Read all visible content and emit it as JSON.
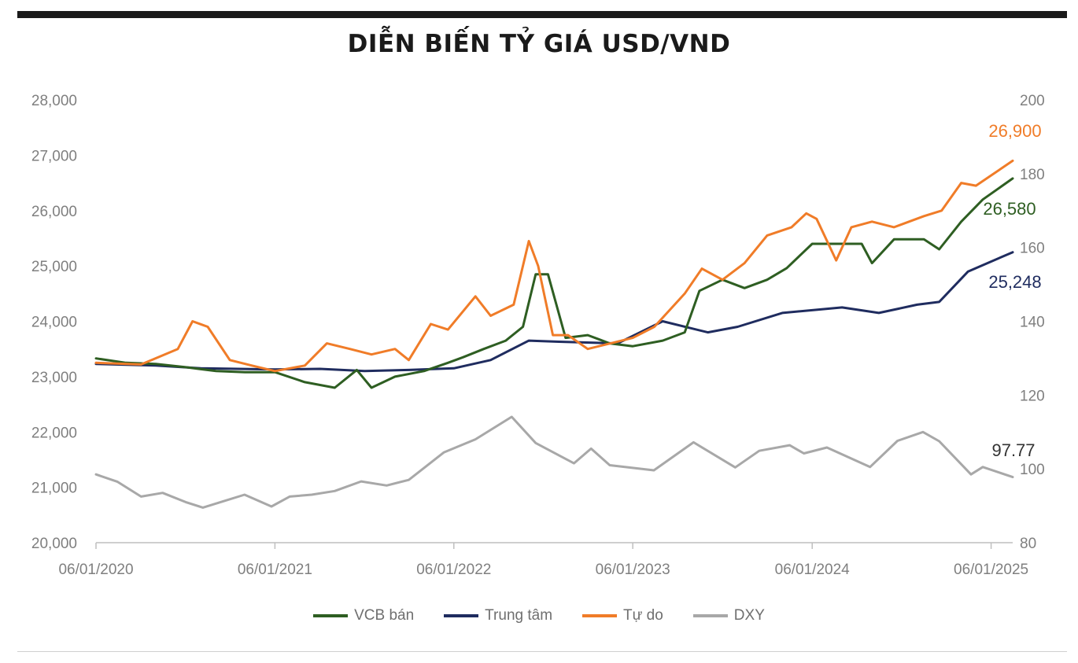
{
  "chart_data": {
    "type": "line",
    "title": "DIỄN BIẾN TỶ GIÁ USD/VND",
    "x_ticks": [
      "06/01/2020",
      "06/01/2021",
      "06/01/2022",
      "06/01/2023",
      "06/01/2024",
      "06/01/2025"
    ],
    "x_range": [
      "2020-06-01",
      "2025-07-15"
    ],
    "y_left": {
      "range": [
        20000,
        28000
      ],
      "ticks": [
        "20,000",
        "21,000",
        "22,000",
        "23,000",
        "24,000",
        "25,000",
        "26,000",
        "27,000",
        "28,000"
      ]
    },
    "y_right": {
      "range": [
        80,
        200
      ],
      "ticks": [
        "80",
        "100",
        "120",
        "140",
        "160",
        "180",
        "200"
      ]
    },
    "legend_position": "bottom",
    "grid": false,
    "series": [
      {
        "name": "VCB bán",
        "color": "#2e5e22",
        "axis": "left",
        "end_label": "26,580",
        "x": [
          "2020-06-01",
          "2020-08-01",
          "2020-10-01",
          "2020-12-01",
          "2021-02-01",
          "2021-04-01",
          "2021-06-01",
          "2021-08-01",
          "2021-10-01",
          "2021-11-15",
          "2021-12-15",
          "2022-02-01",
          "2022-04-01",
          "2022-05-20",
          "2022-06-20",
          "2022-08-01",
          "2022-09-15",
          "2022-10-20",
          "2022-11-15",
          "2022-12-10",
          "2023-01-15",
          "2023-03-01",
          "2023-04-15",
          "2023-06-01",
          "2023-08-01",
          "2023-09-15",
          "2023-10-15",
          "2023-12-01",
          "2024-01-15",
          "2024-03-01",
          "2024-04-10",
          "2024-06-01",
          "2024-08-01",
          "2024-09-10",
          "2024-10-01",
          "2024-11-15",
          "2025-01-15",
          "2025-02-15",
          "2025-04-01",
          "2025-05-15",
          "2025-07-15"
        ],
        "y": [
          23330,
          23250,
          23230,
          23170,
          23100,
          23080,
          23080,
          22900,
          22800,
          23120,
          22800,
          23000,
          23100,
          23250,
          23350,
          23500,
          23650,
          23900,
          24850,
          24850,
          23700,
          23750,
          23600,
          23550,
          23650,
          23800,
          24550,
          24750,
          24600,
          24750,
          24960,
          25400,
          25400,
          25400,
          25050,
          25480,
          25480,
          25300,
          25800,
          26200,
          26580
        ]
      },
      {
        "name": "Trung tâm",
        "color": "#1f2c5f",
        "axis": "left",
        "end_label": "25,248",
        "x": [
          "2020-06-01",
          "2020-10-01",
          "2021-01-01",
          "2021-06-01",
          "2021-09-01",
          "2021-12-01",
          "2022-03-01",
          "2022-06-01",
          "2022-08-15",
          "2022-11-01",
          "2023-01-01",
          "2023-05-01",
          "2023-08-01",
          "2023-11-01",
          "2024-01-01",
          "2024-04-01",
          "2024-08-01",
          "2024-10-15",
          "2025-01-01",
          "2025-02-15",
          "2025-04-15",
          "2025-07-15"
        ],
        "y": [
          23230,
          23200,
          23150,
          23130,
          23140,
          23100,
          23120,
          23150,
          23300,
          23650,
          23630,
          23600,
          24000,
          23800,
          23900,
          24150,
          24250,
          24150,
          24300,
          24350,
          24900,
          25248
        ]
      },
      {
        "name": "Tự do",
        "color": "#f07c28",
        "axis": "left",
        "end_label": "26,900",
        "x": [
          "2020-06-01",
          "2020-09-01",
          "2020-11-15",
          "2020-12-15",
          "2021-01-15",
          "2021-03-01",
          "2021-04-15",
          "2021-06-01",
          "2021-08-01",
          "2021-09-15",
          "2021-11-01",
          "2021-12-15",
          "2022-02-01",
          "2022-03-01",
          "2022-04-15",
          "2022-05-20",
          "2022-07-15",
          "2022-08-15",
          "2022-10-01",
          "2022-11-01",
          "2022-11-20",
          "2022-12-20",
          "2023-01-20",
          "2023-03-01",
          "2023-06-01",
          "2023-07-15",
          "2023-09-15",
          "2023-10-20",
          "2023-12-01",
          "2024-01-15",
          "2024-03-01",
          "2024-04-20",
          "2024-05-20",
          "2024-06-10",
          "2024-07-20",
          "2024-08-20",
          "2024-10-01",
          "2024-11-15",
          "2025-01-15",
          "2025-02-20",
          "2025-04-01",
          "2025-05-01",
          "2025-07-15"
        ],
        "y": [
          23250,
          23220,
          23500,
          24000,
          23900,
          23300,
          23200,
          23100,
          23200,
          23600,
          23500,
          23400,
          23500,
          23300,
          23950,
          23850,
          24450,
          24100,
          24300,
          25450,
          25000,
          23750,
          23750,
          23500,
          23700,
          23900,
          24500,
          24950,
          24750,
          25050,
          25550,
          25700,
          25950,
          25850,
          25100,
          25700,
          25800,
          25700,
          25900,
          26000,
          26500,
          26450,
          26900
        ]
      },
      {
        "name": "DXY",
        "color": "#a8a8a8",
        "axis": "right",
        "end_label": "97.77",
        "x": [
          "2020-06-01",
          "2020-07-15",
          "2020-09-01",
          "2020-10-15",
          "2020-12-01",
          "2021-01-05",
          "2021-03-31",
          "2021-05-25",
          "2021-07-01",
          "2021-08-15",
          "2021-10-01",
          "2021-11-24",
          "2022-01-15",
          "2022-03-01",
          "2022-05-12",
          "2022-07-15",
          "2022-09-27",
          "2022-11-15",
          "2023-02-01",
          "2023-03-08",
          "2023-04-15",
          "2023-07-14",
          "2023-10-03",
          "2023-12-27",
          "2024-02-14",
          "2024-04-16",
          "2024-05-15",
          "2024-07-01",
          "2024-09-27",
          "2024-11-22",
          "2025-01-13",
          "2025-02-15",
          "2025-04-21",
          "2025-05-15",
          "2025-07-15"
        ],
        "y": [
          98.5,
          96.5,
          92.5,
          93.5,
          91.0,
          89.5,
          93.0,
          89.8,
          92.5,
          93.0,
          94.0,
          96.6,
          95.5,
          97.0,
          104.5,
          108.0,
          114.1,
          107.0,
          101.5,
          105.5,
          101.0,
          99.6,
          107.2,
          100.4,
          104.9,
          106.4,
          104.2,
          105.8,
          100.5,
          107.6,
          110.0,
          107.5,
          98.5,
          100.5,
          97.77
        ]
      }
    ]
  }
}
